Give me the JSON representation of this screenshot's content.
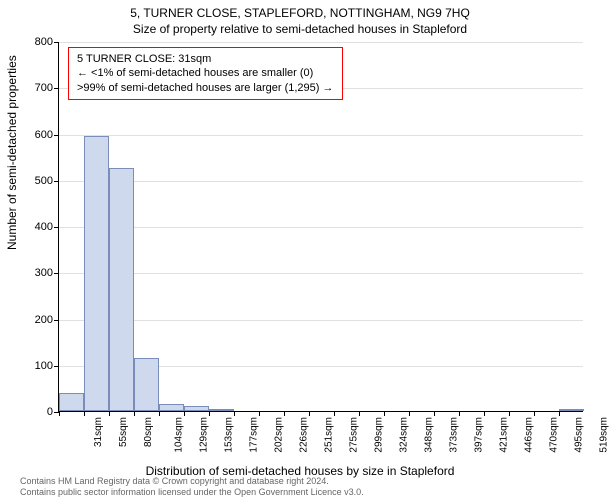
{
  "title_main": "5, TURNER CLOSE, STAPLEFORD, NOTTINGHAM, NG9 7HQ",
  "title_sub": "Size of property relative to semi-detached houses in Stapleford",
  "y_axis_label": "Number of semi-detached properties",
  "x_axis_label": "Distribution of semi-detached houses by size in Stapleford",
  "info_box": {
    "line1": "5 TURNER CLOSE: 31sqm",
    "line2": "← <1% of semi-detached houses are smaller (0)",
    "line3": ">99% of semi-detached houses are larger (1,295) →"
  },
  "footer": {
    "line1": "Contains HM Land Registry data © Crown copyright and database right 2024.",
    "line2": "Contains public sector information licensed under the Open Government Licence v3.0."
  },
  "chart": {
    "type": "histogram",
    "ylim": [
      0,
      800
    ],
    "ytick_step": 100,
    "y_ticks": [
      0,
      100,
      200,
      300,
      400,
      500,
      600,
      700,
      800
    ],
    "x_labels": [
      "31sqm",
      "55sqm",
      "80sqm",
      "104sqm",
      "129sqm",
      "153sqm",
      "177sqm",
      "202sqm",
      "226sqm",
      "251sqm",
      "275sqm",
      "299sqm",
      "324sqm",
      "348sqm",
      "373sqm",
      "397sqm",
      "421sqm",
      "446sqm",
      "470sqm",
      "495sqm",
      "519sqm"
    ],
    "values": [
      40,
      595,
      525,
      115,
      15,
      10,
      3,
      0,
      0,
      0,
      0,
      0,
      0,
      0,
      0,
      0,
      0,
      0,
      0,
      0,
      2
    ],
    "bar_fill": "#cfd9ee",
    "bar_border": "#7a8db8",
    "grid_color": "#e0e0e0",
    "background": "#ffffff",
    "info_border": "#ff0000"
  }
}
